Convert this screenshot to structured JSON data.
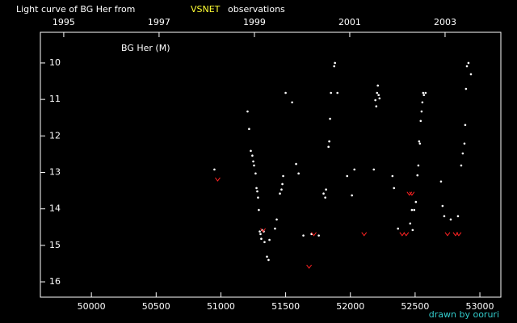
{
  "chart_data": {
    "type": "scatter",
    "title": "Light curve of BG Her from",
    "title_source": "VSNET",
    "title_source_color": "#ffff33",
    "title_suffix": "observations",
    "ylabel": "BG Her (M)",
    "credit": "drawn by ooruri",
    "credit_color": "#33cccc",
    "xlim": [
      49606,
      53162
    ],
    "xticks": [
      50000,
      50500,
      51000,
      51500,
      52000,
      52500,
      53000
    ],
    "x2lim": [
      1994.51,
      2004.17
    ],
    "x2ticks": [
      1995,
      1997,
      1999,
      2001,
      2003
    ],
    "ylim": [
      16.42,
      9.16
    ],
    "yticks": [
      10,
      11,
      12,
      13,
      14,
      15,
      16
    ],
    "axis_color": "#ffffff",
    "series": [
      {
        "color": "#ffffff",
        "marker": "dot",
        "x": [
          50950,
          51206,
          51218,
          51231,
          51243,
          51250,
          51256,
          51268,
          51275,
          51281,
          51287,
          51293,
          51300,
          51306,
          51312,
          51318,
          51331,
          51337,
          51356,
          51368,
          51375,
          51418,
          51431,
          51456,
          51468,
          51475,
          51481,
          51500,
          51550,
          51581,
          51600,
          51637,
          51700,
          51756,
          51793,
          51806,
          51812,
          51831,
          51837,
          51843,
          51850,
          51875,
          51881,
          51900,
          51975,
          52012,
          52031,
          52181,
          52193,
          52200,
          52206,
          52212,
          52218,
          52225,
          52325,
          52337,
          52368,
          52462,
          52475,
          52481,
          52493,
          52506,
          52518,
          52525,
          52531,
          52537,
          52543,
          52550,
          52556,
          52562,
          52568,
          52581,
          52700,
          52712,
          52725,
          52775,
          52831,
          52856,
          52868,
          52881,
          52887,
          52893,
          52900,
          52912,
          52931
        ],
        "values": [
          12.92,
          11.33,
          11.81,
          12.41,
          12.54,
          12.7,
          12.81,
          13.03,
          13.43,
          13.52,
          13.69,
          14.03,
          14.62,
          14.69,
          14.82,
          14.58,
          14.62,
          14.91,
          15.31,
          15.4,
          14.85,
          14.54,
          14.29,
          13.58,
          13.47,
          13.32,
          13.1,
          10.82,
          11.08,
          12.77,
          13.03,
          14.73,
          14.69,
          14.73,
          13.58,
          13.69,
          13.47,
          12.3,
          12.15,
          11.53,
          10.82,
          10.09,
          10.0,
          10.82,
          13.1,
          13.63,
          12.92,
          12.92,
          11.02,
          11.19,
          10.82,
          10.62,
          10.88,
          10.97,
          13.1,
          13.43,
          14.54,
          14.4,
          14.03,
          14.58,
          14.03,
          13.81,
          13.08,
          12.81,
          12.15,
          12.21,
          11.59,
          11.33,
          11.08,
          10.82,
          10.88,
          10.82,
          13.25,
          13.92,
          14.2,
          14.29,
          14.2,
          12.81,
          12.48,
          12.21,
          11.7,
          10.71,
          10.09,
          10.0,
          10.31
        ]
      },
      {
        "color": "#ff2222",
        "marker": "v",
        "x": [
          50975,
          51325,
          51681,
          51718,
          52106,
          52400,
          52431,
          52456,
          52475,
          52750,
          52812,
          52837
        ],
        "values": [
          13.19,
          14.58,
          15.58,
          14.69,
          14.69,
          14.69,
          14.69,
          13.58,
          13.58,
          14.69,
          14.69,
          14.69
        ]
      }
    ]
  }
}
